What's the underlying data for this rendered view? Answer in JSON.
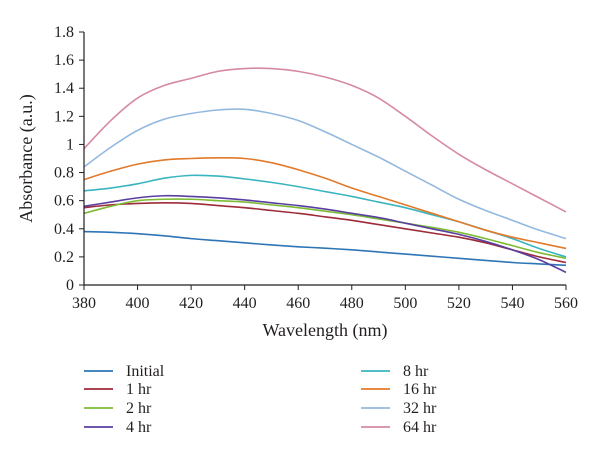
{
  "chart_data": {
    "type": "line",
    "xlabel": "Wavelength (nm)",
    "ylabel": "Absorbance (a.u.)",
    "xlim": [
      380,
      560
    ],
    "ylim": [
      0,
      1.8
    ],
    "x_ticks": [
      "380",
      "400",
      "420",
      "440",
      "460",
      "480",
      "500",
      "520",
      "540",
      "560"
    ],
    "y_ticks": [
      "0",
      "0.2",
      "0.4",
      "0.6",
      "0.8",
      "1",
      "1.2",
      "1.4",
      "1.6",
      "1.8"
    ],
    "grid": false,
    "legend_position": "bottom, two columns",
    "x": [
      380,
      390,
      400,
      410,
      420,
      430,
      440,
      450,
      460,
      470,
      480,
      490,
      500,
      510,
      520,
      530,
      540,
      550,
      560
    ],
    "series": [
      {
        "name": "Initial",
        "color": "#2e75b6",
        "values": [
          0.38,
          0.375,
          0.365,
          0.35,
          0.33,
          0.315,
          0.3,
          0.285,
          0.272,
          0.262,
          0.25,
          0.235,
          0.22,
          0.205,
          0.19,
          0.175,
          0.16,
          0.15,
          0.14
        ]
      },
      {
        "name": "1 hr",
        "color": "#9e2a3a",
        "values": [
          0.55,
          0.57,
          0.58,
          0.585,
          0.58,
          0.565,
          0.55,
          0.53,
          0.51,
          0.485,
          0.46,
          0.43,
          0.4,
          0.37,
          0.34,
          0.3,
          0.25,
          0.2,
          0.16
        ]
      },
      {
        "name": "2 hr",
        "color": "#7dbb35",
        "values": [
          0.51,
          0.56,
          0.6,
          0.61,
          0.61,
          0.6,
          0.59,
          0.57,
          0.55,
          0.525,
          0.5,
          0.47,
          0.44,
          0.41,
          0.375,
          0.33,
          0.28,
          0.23,
          0.19
        ]
      },
      {
        "name": "4 hr",
        "color": "#5a3fa0",
        "values": [
          0.56,
          0.59,
          0.62,
          0.635,
          0.63,
          0.62,
          0.605,
          0.585,
          0.565,
          0.54,
          0.51,
          0.48,
          0.44,
          0.4,
          0.36,
          0.31,
          0.25,
          0.18,
          0.09
        ]
      },
      {
        "name": "8 hr",
        "color": "#3ab5c0",
        "values": [
          0.67,
          0.69,
          0.72,
          0.76,
          0.78,
          0.775,
          0.755,
          0.73,
          0.7,
          0.665,
          0.63,
          0.59,
          0.55,
          0.5,
          0.45,
          0.39,
          0.33,
          0.26,
          0.2
        ]
      },
      {
        "name": "16 hr",
        "color": "#e27a2b",
        "values": [
          0.75,
          0.81,
          0.86,
          0.89,
          0.9,
          0.905,
          0.9,
          0.87,
          0.82,
          0.76,
          0.69,
          0.63,
          0.57,
          0.51,
          0.45,
          0.39,
          0.34,
          0.3,
          0.26
        ]
      },
      {
        "name": "32 hr",
        "color": "#93b9de",
        "values": [
          0.84,
          0.98,
          1.1,
          1.18,
          1.22,
          1.245,
          1.25,
          1.22,
          1.17,
          1.09,
          1.0,
          0.91,
          0.81,
          0.71,
          0.61,
          0.53,
          0.46,
          0.39,
          0.33
        ]
      },
      {
        "name": "64 hr",
        "color": "#d68aa2",
        "values": [
          0.97,
          1.17,
          1.33,
          1.42,
          1.47,
          1.52,
          1.54,
          1.54,
          1.52,
          1.48,
          1.42,
          1.33,
          1.2,
          1.06,
          0.93,
          0.82,
          0.72,
          0.62,
          0.52
        ]
      }
    ]
  }
}
